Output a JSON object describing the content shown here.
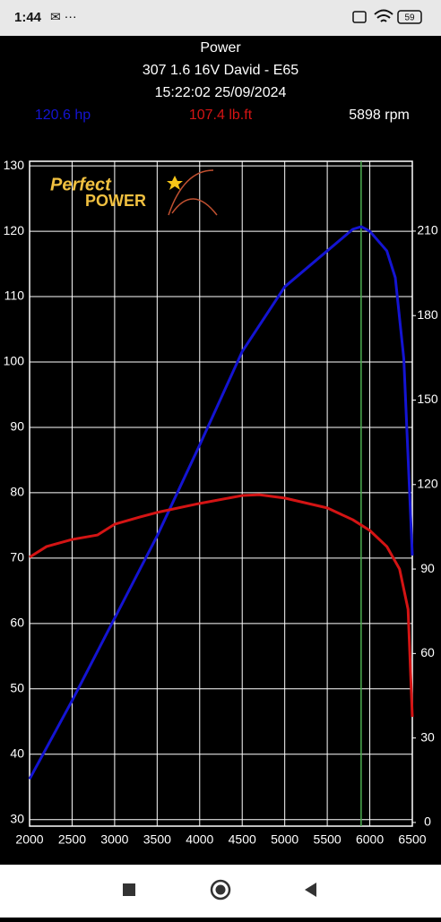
{
  "status_bar": {
    "time": "1:44",
    "battery": "59"
  },
  "chart_data": {
    "type": "line",
    "title": "Power",
    "subtitle": [
      "307 1.6 16V David - E65",
      "15:22:02 25/09/2024"
    ],
    "readouts": [
      "120.6 hp",
      "107.4 lb.ft",
      "5898 rpm"
    ],
    "logo": [
      "Perfect",
      "POWER"
    ],
    "cursor_x": 5898,
    "cursor_color": "#4caf50",
    "xlim": [
      2000,
      6500
    ],
    "xticks": [
      2000,
      2500,
      3000,
      3500,
      4000,
      4500,
      5000,
      5500,
      6000,
      6500
    ],
    "ylim": [
      29,
      130.7
    ],
    "yticks": [
      30,
      40,
      50,
      60,
      70,
      80,
      90,
      100,
      110,
      120,
      130
    ],
    "y2lim": [
      -1.3,
      234.8
    ],
    "y2ticks": [
      0,
      30,
      60,
      90,
      120,
      150,
      180,
      210
    ],
    "grid": true,
    "series": [
      {
        "name": "hp",
        "color": "#1414d2",
        "x": [
          2000,
          2500,
          3000,
          3500,
          4000,
          4500,
          5000,
          5500,
          5800,
          5900,
          6000,
          6200,
          6300,
          6400,
          6500
        ],
        "values": [
          36.2,
          48.2,
          60.8,
          73.4,
          87.3,
          101.6,
          111.5,
          117,
          120.3,
          120.7,
          120,
          117,
          112.9,
          100.5,
          70.4
        ]
      },
      {
        "name": "lb.ft",
        "color": "#d41414",
        "axis": "y2",
        "x": [
          2000,
          2200,
          2500,
          2800,
          3000,
          3300,
          3500,
          4000,
          4500,
          4700,
          5000,
          5500,
          5800,
          6000,
          6200,
          6350,
          6450,
          6500
        ],
        "values": [
          94.2,
          98,
          100.5,
          102.1,
          105.9,
          108.5,
          110.1,
          113.3,
          116.1,
          116.4,
          115.2,
          111.7,
          107.5,
          103.7,
          98,
          90,
          75.7,
          37.5
        ]
      }
    ]
  }
}
